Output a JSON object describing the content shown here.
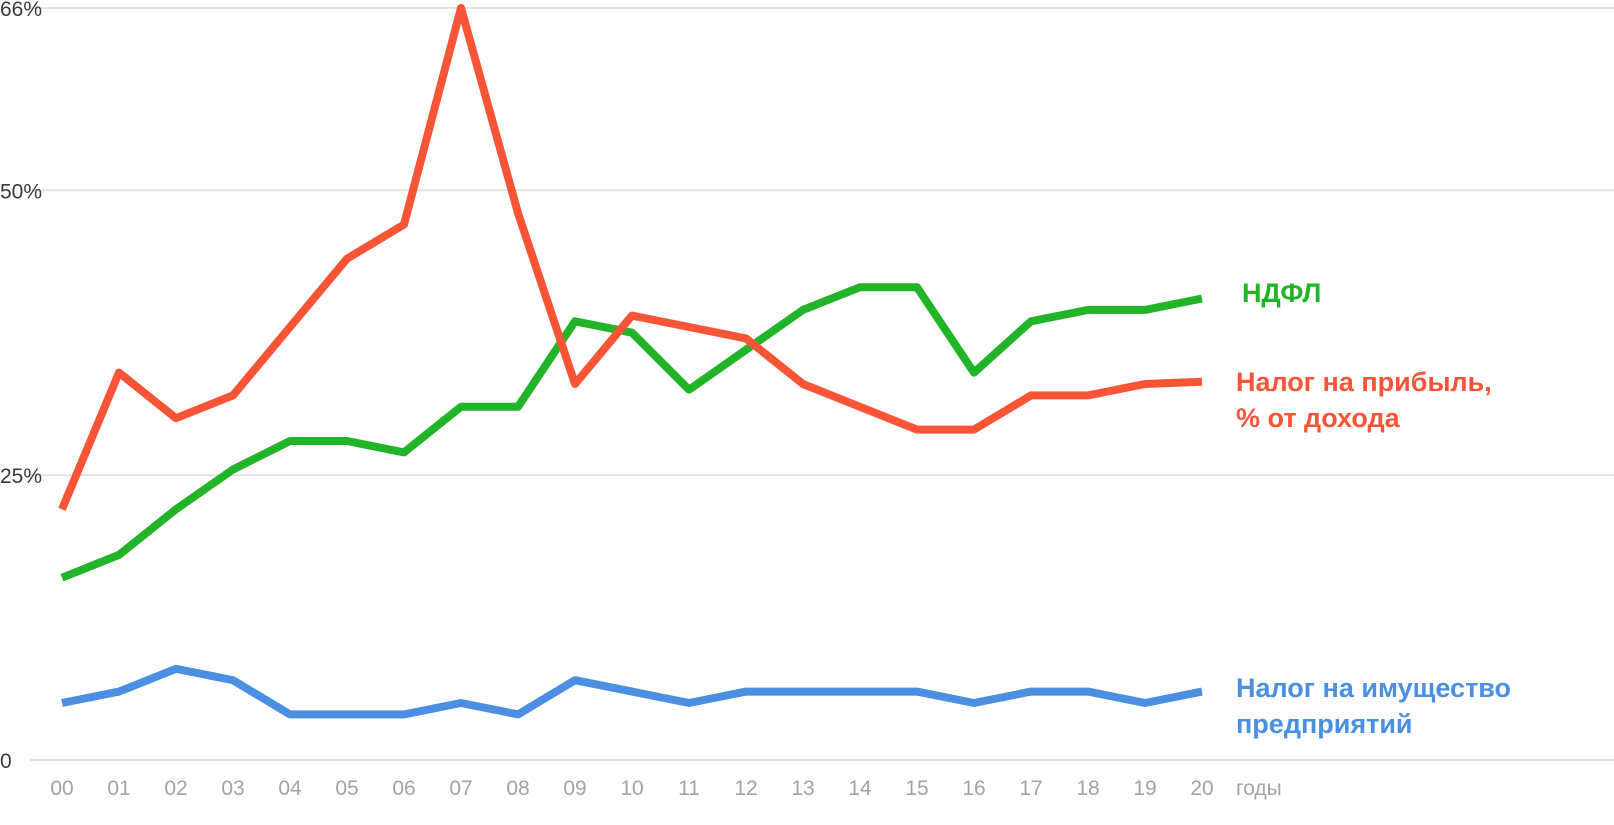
{
  "chart_data": {
    "type": "line",
    "x": [
      "00",
      "01",
      "02",
      "03",
      "04",
      "05",
      "06",
      "07",
      "08",
      "09",
      "10",
      "11",
      "12",
      "13",
      "14",
      "15",
      "16",
      "17",
      "18",
      "19",
      "20"
    ],
    "xlabel": "годы",
    "ylabel": "",
    "title": "",
    "ylim": [
      0,
      66
    ],
    "yticks": [
      {
        "value": 0,
        "label": "0"
      },
      {
        "value": 25,
        "label": "25%"
      },
      {
        "value": 50,
        "label": "50%"
      },
      {
        "value": 66,
        "label": "66%"
      }
    ],
    "grid": true,
    "legend": "inline-right",
    "series": [
      {
        "name": "НДФЛ",
        "label_lines": [
          "НДФЛ"
        ],
        "color": "#22b427",
        "values": [
          16,
          18,
          22,
          25.5,
          28,
          28,
          27,
          31,
          31,
          38.5,
          37.5,
          32.5,
          36,
          39.5,
          41.5,
          41.5,
          34,
          38.5,
          39.5,
          39.5,
          40.5
        ]
      },
      {
        "name": "Налог на прибыль, % от дохода",
        "label_lines": [
          "Налог на прибыль,",
          "% от дохода"
        ],
        "color": "#fa5436",
        "values": [
          22,
          34,
          30,
          32,
          38,
          44,
          47,
          66,
          48,
          33,
          39,
          38,
          37,
          33,
          31,
          29,
          29,
          32,
          32,
          33,
          33.2
        ]
      },
      {
        "name": "Налог на имущество предприятий",
        "label_lines": [
          "Налог на имущество",
          "предприятий"
        ],
        "color": "#4a8fe2",
        "values": [
          5,
          6,
          8,
          7,
          4,
          4,
          4,
          5,
          4,
          7,
          6,
          5,
          6,
          6,
          6,
          6,
          5,
          6,
          6,
          5,
          6
        ]
      }
    ]
  }
}
